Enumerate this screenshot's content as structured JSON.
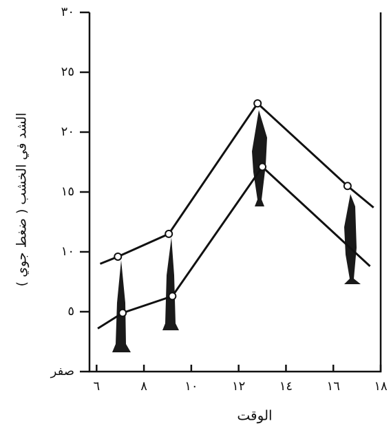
{
  "chart_data": {
    "type": "line",
    "y_label": "الشد في الخشب ( ضغط جوي )",
    "x_label": "الوقت",
    "xlim": [
      5.7,
      18
    ],
    "ylim": [
      0,
      30
    ],
    "xticks": [
      {
        "value": 6,
        "label": "٦"
      },
      {
        "value": 8,
        "label": "٨"
      },
      {
        "value": 10,
        "label": "١٠"
      },
      {
        "value": 12,
        "label": "١٢"
      },
      {
        "value": 14,
        "label": "١٤"
      },
      {
        "value": 16,
        "label": "١٦"
      },
      {
        "value": 18,
        "label": "١٨"
      }
    ],
    "yticks": [
      {
        "value": 0,
        "label": "صفر"
      },
      {
        "value": 5,
        "label": "٥"
      },
      {
        "value": 10,
        "label": "١٠"
      },
      {
        "value": 15,
        "label": "١٥"
      },
      {
        "value": 20,
        "label": "٢٠"
      },
      {
        "value": 25,
        "label": "٢٥"
      },
      {
        "value": 30,
        "label": "٣٠"
      }
    ],
    "series": [
      {
        "color": "#111111",
        "x": [
          6.15,
          6.9,
          9.05,
          12.8,
          16.6,
          17.7
        ],
        "values": [
          9.0,
          9.6,
          11.5,
          22.4,
          15.5,
          13.7
        ]
      },
      {
        "color": "#111111",
        "x": [
          6.05,
          7.1,
          9.2,
          13.0,
          17.55
        ],
        "values": [
          3.6,
          4.9,
          6.3,
          17.1,
          8.8
        ]
      }
    ]
  }
}
